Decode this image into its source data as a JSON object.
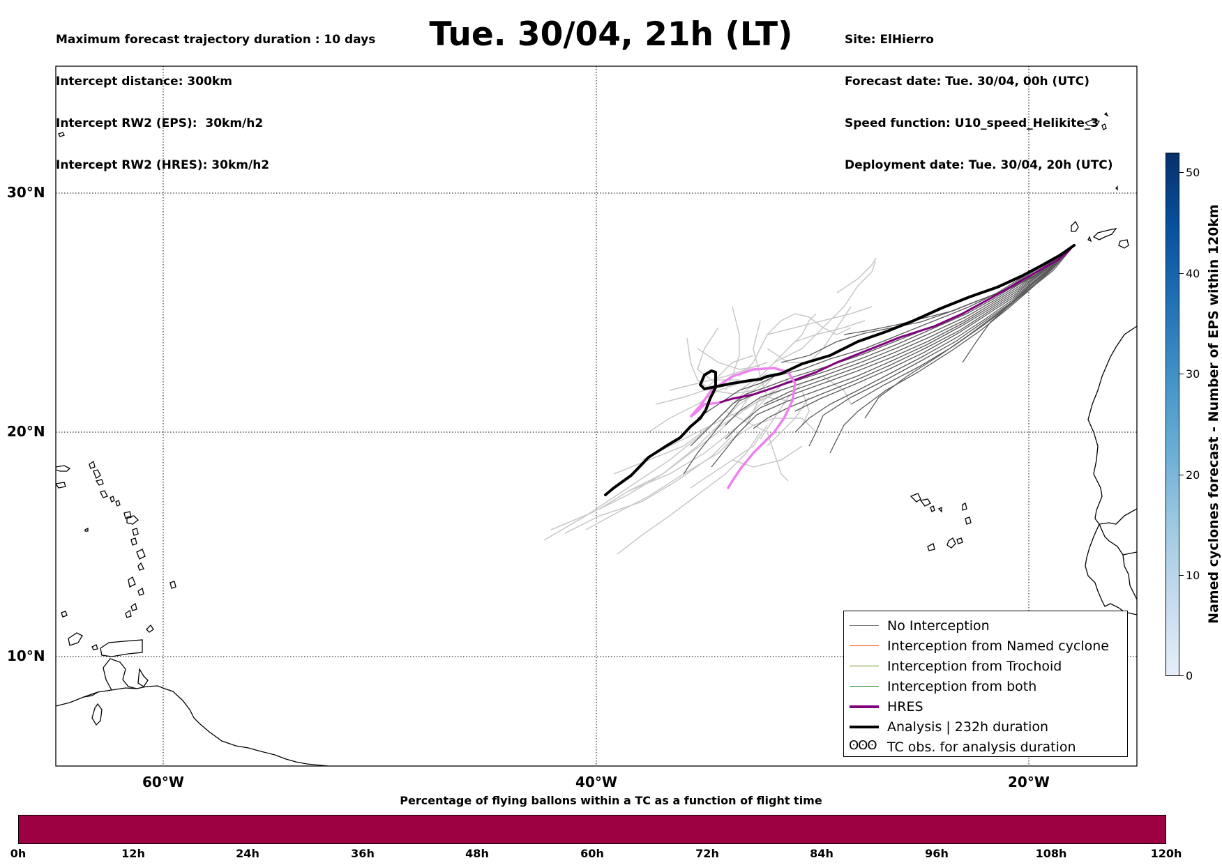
{
  "header_left": [
    "Maximum forecast trajectory duration : 10 days",
    "Intercept distance: 300km",
    "Intercept RW2 (EPS):  30km/h2",
    "Intercept RW2 (HRES): 30km/h2"
  ],
  "header_right": [
    "Site: ElHierro",
    "Forecast date: Tue. 30/04, 00h (UTC)",
    "Speed function: U10_speed_Helikite_3",
    "Deployment date: Tue. 30/04, 20h (UTC)"
  ],
  "title": "Tue. 30/04, 21h (LT)",
  "axes": {
    "lon_labels": [
      "60°W",
      "40°W",
      "20°W"
    ],
    "lat_labels": [
      "30°N",
      "20°N",
      "10°N"
    ],
    "lon_range": [
      -65,
      -15
    ],
    "lat_range": [
      5.5,
      34.8
    ],
    "grid": true
  },
  "legend": {
    "items": [
      {
        "label": "No Interception",
        "color": "#707070"
      },
      {
        "label": "Interception from Named cyclone",
        "color": "#ff4500"
      },
      {
        "label": "Interception from Trochoid",
        "color": "#6b8e23"
      },
      {
        "label": "Interception from both",
        "color": "#228b22"
      },
      {
        "label": "HRES",
        "color": "#800080"
      },
      {
        "label": "Analysis | 232h duration",
        "color": "#000000"
      },
      {
        "label": "TC obs. for analysis duration",
        "color": "#000000"
      }
    ],
    "symbol": "ʘʘʘ"
  },
  "colorbar": {
    "title": "Named cyclones forecast - Number of EPS within 120km",
    "ticks": [
      "0",
      "10",
      "20",
      "30",
      "40",
      "50"
    ],
    "range": [
      0,
      52
    ]
  },
  "percentage_bar": {
    "title": "Percentage of flying ballons within a TC as a function of flight time",
    "ticks": [
      "0h",
      "12h",
      "24h",
      "36h",
      "48h",
      "60h",
      "72h",
      "84h",
      "96h",
      "108h",
      "120h"
    ],
    "color": "#9e0142"
  }
}
